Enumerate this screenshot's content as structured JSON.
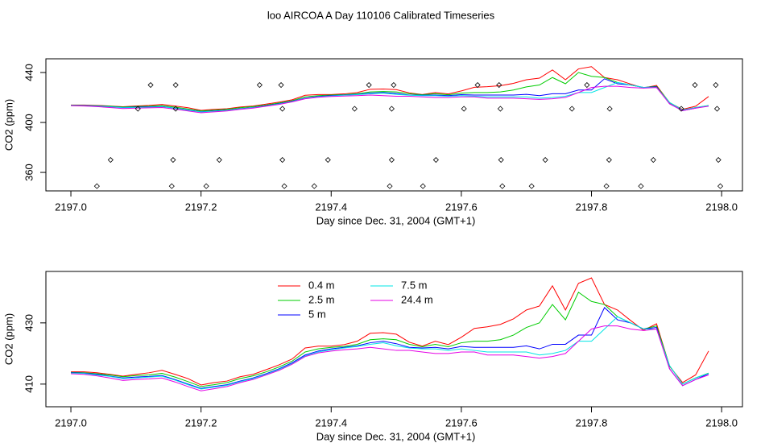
{
  "chart_data": [
    {
      "type": "line",
      "title": "loo AIRCOA A  Day 110106  Calibrated Timeseries",
      "xlabel": "Day since Dec. 31, 2004 (GMT+1)",
      "ylabel": "CO2 (ppm)",
      "xlim": [
        2196.9616,
        2198.032
      ],
      "ylim": [
        345.2,
        451
      ],
      "xticks": [
        {
          "value": 2197,
          "label": "2197.0"
        },
        2197.2,
        2197.4,
        2197.6,
        2197.8,
        {
          "value": 2198,
          "label": "2198.0"
        }
      ],
      "yticks": [
        360,
        400,
        440
      ],
      "x": [
        2197.0,
        2197.02,
        2197.04,
        2197.06,
        2197.08,
        2197.1,
        2197.12,
        2197.14,
        2197.16,
        2197.18,
        2197.2,
        2197.22,
        2197.24,
        2197.26,
        2197.28,
        2197.3,
        2197.32,
        2197.34,
        2197.36,
        2197.38,
        2197.4,
        2197.42,
        2197.44,
        2197.46,
        2197.48,
        2197.5,
        2197.52,
        2197.54,
        2197.56,
        2197.58,
        2197.6,
        2197.62,
        2197.64,
        2197.66,
        2197.68,
        2197.7,
        2197.72,
        2197.74,
        2197.76,
        2197.78,
        2197.8,
        2197.82,
        2197.84,
        2197.86,
        2197.88,
        2197.9,
        2197.92,
        2197.94,
        2197.96,
        2197.98
      ],
      "series": [
        {
          "color": "#ff0000",
          "values": [
            414,
            414,
            413.7,
            413.2,
            412.6,
            413.2,
            413.7,
            414.5,
            413.2,
            411.8,
            409.7,
            410.5,
            411,
            412.4,
            413.2,
            414.7,
            416.3,
            418.2,
            421.8,
            422.4,
            422.4,
            422.9,
            424,
            426.6,
            426.8,
            426.3,
            423.7,
            422.4,
            424,
            422.9,
            425.3,
            428.2,
            428.7,
            429.5,
            431.3,
            434.2,
            435.5,
            442.1,
            434.2,
            442.9,
            444.7,
            436,
            434.2,
            430.8,
            427.6,
            429.7,
            415.8,
            410.5,
            413,
            420.8
          ]
        },
        {
          "color": "#00cc00",
          "values": [
            413.8,
            413.7,
            413.4,
            413,
            412.4,
            412.8,
            413,
            413.5,
            412.3,
            410.8,
            409.2,
            409.8,
            410.5,
            411.8,
            412.7,
            414,
            415.6,
            417.5,
            420.5,
            421.5,
            422,
            422.3,
            423,
            424.5,
            424.8,
            424.5,
            423,
            422.2,
            423,
            422.2,
            423.5,
            424,
            424,
            424.5,
            426,
            428.5,
            430,
            436,
            431,
            440,
            437,
            436,
            432,
            430,
            428,
            429,
            416,
            410,
            412,
            413.6
          ]
        },
        {
          "color": "#0000ff",
          "values": [
            413.7,
            413.6,
            413.2,
            412.6,
            412,
            412.3,
            412.5,
            412.8,
            411.5,
            410,
            408.6,
            409.2,
            409.8,
            411,
            412,
            413.4,
            415,
            417,
            419.5,
            420.8,
            421.5,
            422,
            422.5,
            423.5,
            424,
            423.2,
            422,
            421.8,
            422,
            421.5,
            422.3,
            422,
            422,
            422,
            422,
            422.5,
            421.5,
            423,
            423,
            426,
            426,
            435,
            431,
            430,
            428,
            428.5,
            415,
            409.5,
            411.5,
            413.4
          ]
        },
        {
          "color": "#00e5e5",
          "values": [
            413.6,
            413.5,
            413,
            412.5,
            411.8,
            412,
            412.3,
            412.6,
            411.3,
            409.8,
            408.4,
            409,
            409.6,
            410.8,
            411.8,
            413.2,
            414.8,
            416.7,
            419.2,
            420.5,
            421.2,
            421.8,
            422.3,
            423,
            423.5,
            422.5,
            421.8,
            421.5,
            421.5,
            421,
            421.5,
            421,
            420.5,
            420.5,
            420.5,
            420.5,
            419.5,
            420,
            421,
            424,
            424,
            428,
            432,
            430,
            428,
            428,
            416,
            410,
            412,
            413.5
          ]
        },
        {
          "color": "#e500e5",
          "values": [
            413.4,
            413.2,
            412.7,
            412,
            411.2,
            411.5,
            411.7,
            412,
            410.7,
            409.2,
            407.8,
            408.5,
            409.2,
            410.5,
            411.5,
            413,
            414.5,
            416.5,
            419,
            420.2,
            420.8,
            421.2,
            421.5,
            422,
            421.5,
            421,
            421,
            420.5,
            420,
            420,
            420.5,
            420.5,
            419.5,
            419.5,
            419.5,
            419,
            418.5,
            419,
            420,
            424,
            428,
            429,
            429,
            428,
            427.5,
            428,
            415,
            409.5,
            411.5,
            413
          ]
        },
        {
          "color": "#000000",
          "marker": "diamond",
          "x": [
            2197.1225,
            2197.161,
            2197.29,
            2197.323,
            2197.458,
            2197.496,
            2197.625,
            2197.658,
            2197.793,
            2197.959,
            2197.991,
            2197.103,
            2197.161,
            2197.325,
            2197.436,
            2197.493,
            2197.604,
            2197.66,
            2197.77,
            2197.828,
            2197.938,
            2197.993,
            2197.061,
            2197.157,
            2197.228,
            2197.325,
            2197.395,
            2197.493,
            2197.561,
            2197.661,
            2197.729,
            2197.827,
            2197.895,
            2197.995,
            2197.04,
            2197.155,
            2197.208,
            2197.328,
            2197.374,
            2197.49,
            2197.541,
            2197.663,
            2197.708,
            2197.823,
            2197.876,
            2197.998
          ],
          "values": [
            430,
            430,
            430,
            430,
            430,
            430,
            430,
            430,
            430,
            430,
            430,
            411,
            411,
            411,
            411,
            411,
            411,
            411,
            411,
            411,
            411,
            411,
            370,
            370,
            370,
            370,
            370,
            370,
            370,
            370,
            370,
            370,
            370,
            370,
            349,
            349,
            349,
            349,
            349,
            349,
            349,
            349,
            349,
            349,
            349,
            349
          ]
        }
      ]
    },
    {
      "type": "line",
      "xlabel": "Day since Dec. 31, 2004 (GMT+1)",
      "ylabel": "CO2 (ppm)",
      "xlim": [
        2196.9616,
        2198.032
      ],
      "ylim": [
        402.6,
        446.8
      ],
      "xticks": [
        {
          "value": 2197,
          "label": "2197.0"
        },
        2197.2,
        2197.4,
        2197.6,
        2197.8,
        {
          "value": 2198,
          "label": "2198.0"
        }
      ],
      "yticks": [
        410,
        430
      ],
      "legend": "top-center",
      "x": [
        2197.0,
        2197.02,
        2197.04,
        2197.06,
        2197.08,
        2197.1,
        2197.12,
        2197.14,
        2197.16,
        2197.18,
        2197.2,
        2197.22,
        2197.24,
        2197.26,
        2197.28,
        2197.3,
        2197.32,
        2197.34,
        2197.36,
        2197.38,
        2197.4,
        2197.42,
        2197.44,
        2197.46,
        2197.48,
        2197.5,
        2197.52,
        2197.54,
        2197.56,
        2197.58,
        2197.6,
        2197.62,
        2197.64,
        2197.66,
        2197.68,
        2197.7,
        2197.72,
        2197.74,
        2197.76,
        2197.78,
        2197.8,
        2197.82,
        2197.84,
        2197.86,
        2197.88,
        2197.9,
        2197.92,
        2197.94,
        2197.96,
        2197.98
      ],
      "series": [
        {
          "name": "0.4 m",
          "color": "#ff0000",
          "values": [
            414,
            414,
            413.7,
            413.2,
            412.6,
            413.2,
            413.7,
            414.5,
            413.2,
            411.8,
            409.7,
            410.5,
            411,
            412.4,
            413.2,
            414.7,
            416.3,
            418.2,
            421.8,
            422.4,
            422.4,
            422.9,
            424,
            426.6,
            426.8,
            426.3,
            423.7,
            422.4,
            424,
            422.9,
            425.3,
            428.2,
            428.7,
            429.5,
            431.3,
            434.2,
            435.5,
            442.1,
            434.2,
            442.9,
            444.7,
            436,
            434.2,
            430.8,
            427.6,
            429.7,
            415.8,
            410.5,
            413,
            420.8
          ]
        },
        {
          "name": "2.5 m",
          "color": "#00cc00",
          "values": [
            413.8,
            413.7,
            413.4,
            413,
            412.4,
            412.8,
            413,
            413.5,
            412.3,
            410.8,
            409.2,
            409.8,
            410.5,
            411.8,
            412.7,
            414,
            415.6,
            417.5,
            420.5,
            421.5,
            422,
            422.3,
            423,
            424.5,
            424.8,
            424.5,
            423,
            422.2,
            423,
            422.2,
            423.5,
            424,
            424,
            424.5,
            426,
            428.5,
            430,
            436,
            431,
            440,
            437,
            436,
            432,
            430,
            428,
            429,
            416,
            410,
            412,
            413.6
          ]
        },
        {
          "name": "5 m",
          "color": "#0000ff",
          "values": [
            413.7,
            413.6,
            413.2,
            412.6,
            412,
            412.3,
            412.5,
            412.8,
            411.5,
            410,
            408.6,
            409.2,
            409.8,
            411,
            412,
            413.4,
            415,
            417,
            419.5,
            420.8,
            421.5,
            422,
            422.5,
            423.5,
            424,
            423.2,
            422,
            421.8,
            422,
            421.5,
            422.3,
            422,
            422,
            422,
            422,
            422.5,
            421.5,
            423,
            423,
            426,
            426,
            435,
            431,
            430,
            428,
            428.5,
            415,
            409.5,
            411.5,
            413.4
          ]
        },
        {
          "name": "7.5 m",
          "color": "#00e5e5",
          "values": [
            413.6,
            413.5,
            413,
            412.5,
            411.8,
            412,
            412.3,
            412.6,
            411.3,
            409.8,
            408.4,
            409,
            409.6,
            410.8,
            411.8,
            413.2,
            414.8,
            416.7,
            419.2,
            420.5,
            421.2,
            421.8,
            422.3,
            423,
            423.5,
            422.5,
            421.8,
            421.5,
            421.5,
            421,
            421.5,
            421,
            420.5,
            420.5,
            420.5,
            420.5,
            419.5,
            420,
            421,
            424,
            424,
            428,
            432,
            430,
            428,
            428,
            416,
            410,
            412,
            413.5
          ]
        },
        {
          "name": "24.4 m",
          "color": "#e500e5",
          "values": [
            413.4,
            413.2,
            412.7,
            412,
            411.2,
            411.5,
            411.7,
            412,
            410.7,
            409.2,
            407.8,
            408.5,
            409.2,
            410.5,
            411.5,
            413,
            414.5,
            416.5,
            419,
            420.2,
            420.8,
            421.2,
            421.5,
            422,
            421.5,
            421,
            421,
            420.5,
            420,
            420,
            420.5,
            420.5,
            419.5,
            419.5,
            419.5,
            419,
            418.5,
            419,
            420,
            424,
            428,
            429,
            429,
            428,
            427.5,
            428,
            415,
            409.5,
            411.5,
            413
          ]
        }
      ]
    }
  ]
}
